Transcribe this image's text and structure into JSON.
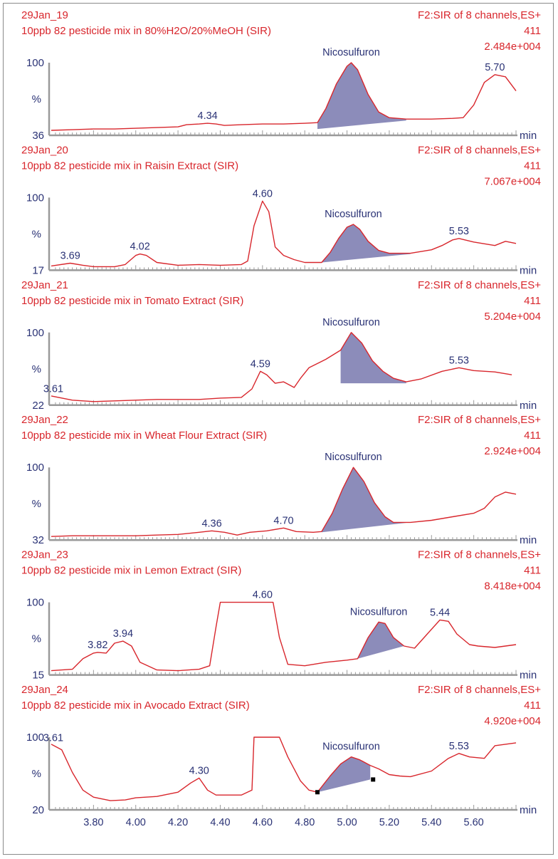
{
  "chart_data": {
    "type": "line",
    "x_axis": {
      "label": "min",
      "range": [
        3.6,
        5.8
      ],
      "ticks": [
        "3.80",
        "4.00",
        "4.20",
        "4.40",
        "4.60",
        "4.80",
        "5.00",
        "5.20",
        "5.40",
        "5.60"
      ]
    },
    "y_axis_label": "%",
    "panels": [
      {
        "sample": "29Jan_19",
        "title": "10ppb 82 pesticide mix in 80%H2O/20%MeOH (SIR)",
        "function": "F2:SIR of 8 channels,ES+",
        "mass": "411",
        "intensity": "2.484e+004",
        "y_top": "100",
        "y_bottom": "36",
        "peak_name": "Nicosulfuron",
        "integration": {
          "start": 4.86,
          "end": 5.28,
          "baseline_start": 6,
          "baseline_end": 18
        },
        "trace": [
          [
            3.6,
            4
          ],
          [
            3.7,
            5
          ],
          [
            3.8,
            6
          ],
          [
            3.9,
            6
          ],
          [
            4.0,
            7
          ],
          [
            4.1,
            8
          ],
          [
            4.2,
            9
          ],
          [
            4.24,
            12
          ],
          [
            4.3,
            13
          ],
          [
            4.34,
            14
          ],
          [
            4.38,
            13
          ],
          [
            4.42,
            11
          ],
          [
            4.5,
            12
          ],
          [
            4.6,
            13
          ],
          [
            4.7,
            13
          ],
          [
            4.8,
            14
          ],
          [
            4.86,
            15
          ],
          [
            4.9,
            35
          ],
          [
            4.95,
            70
          ],
          [
            5.0,
            95
          ],
          [
            5.02,
            100
          ],
          [
            5.05,
            90
          ],
          [
            5.1,
            55
          ],
          [
            5.15,
            30
          ],
          [
            5.2,
            22
          ],
          [
            5.28,
            20
          ],
          [
            5.4,
            20
          ],
          [
            5.5,
            21
          ],
          [
            5.55,
            22
          ],
          [
            5.6,
            40
          ],
          [
            5.65,
            72
          ],
          [
            5.7,
            83
          ],
          [
            5.75,
            80
          ],
          [
            5.8,
            60
          ]
        ],
        "peak_labels": [
          {
            "x": 4.34,
            "text": "4.34"
          },
          {
            "x": 5.7,
            "text": "5.70"
          }
        ]
      },
      {
        "sample": "29Jan_20",
        "title": "10ppb 82 pesticide mix in Raisin Extract (SIR)",
        "function": "F2:SIR of 8 channels,ES+",
        "mass": "411",
        "intensity": "7.067e+004",
        "y_top": "100",
        "y_bottom": "17",
        "peak_name": "Nicosulfuron",
        "integration": {
          "start": 4.88,
          "end": 5.3,
          "baseline_start": 8,
          "baseline_end": 20
        },
        "trace": [
          [
            3.6,
            3
          ],
          [
            3.69,
            7
          ],
          [
            3.75,
            4
          ],
          [
            3.8,
            2
          ],
          [
            3.9,
            2
          ],
          [
            3.95,
            5
          ],
          [
            4.0,
            18
          ],
          [
            4.02,
            20
          ],
          [
            4.05,
            18
          ],
          [
            4.1,
            8
          ],
          [
            4.2,
            4
          ],
          [
            4.3,
            5
          ],
          [
            4.4,
            4
          ],
          [
            4.5,
            5
          ],
          [
            4.53,
            10
          ],
          [
            4.56,
            60
          ],
          [
            4.6,
            95
          ],
          [
            4.63,
            80
          ],
          [
            4.66,
            30
          ],
          [
            4.7,
            18
          ],
          [
            4.75,
            12
          ],
          [
            4.8,
            8
          ],
          [
            4.88,
            8
          ],
          [
            4.92,
            22
          ],
          [
            4.96,
            42
          ],
          [
            5.0,
            58
          ],
          [
            5.03,
            62
          ],
          [
            5.06,
            55
          ],
          [
            5.1,
            38
          ],
          [
            5.15,
            25
          ],
          [
            5.2,
            21
          ],
          [
            5.3,
            21
          ],
          [
            5.4,
            26
          ],
          [
            5.45,
            32
          ],
          [
            5.5,
            40
          ],
          [
            5.53,
            42
          ],
          [
            5.6,
            37
          ],
          [
            5.7,
            32
          ],
          [
            5.75,
            38
          ],
          [
            5.8,
            35
          ]
        ],
        "peak_labels": [
          {
            "x": 3.69,
            "text": "3.69"
          },
          {
            "x": 4.02,
            "text": "4.02"
          },
          {
            "x": 4.6,
            "text": "4.60"
          },
          {
            "x": 5.53,
            "text": "5.53"
          }
        ]
      },
      {
        "sample": "29Jan_21",
        "title": "10ppb 82 pesticide mix in Tomato Extract (SIR)",
        "function": "F2:SIR of 8 channels,ES+",
        "mass": "411",
        "intensity": "5.204e+004",
        "y_top": "100",
        "y_bottom": "22",
        "peak_name": "Nicosulfuron",
        "integration": {
          "start": 4.97,
          "end": 5.28,
          "baseline_start": 28,
          "baseline_end": 28
        },
        "trace": [
          [
            3.6,
            10
          ],
          [
            3.7,
            4
          ],
          [
            3.8,
            2
          ],
          [
            3.9,
            3
          ],
          [
            4.0,
            4
          ],
          [
            4.1,
            5
          ],
          [
            4.2,
            5
          ],
          [
            4.3,
            5
          ],
          [
            4.4,
            7
          ],
          [
            4.5,
            8
          ],
          [
            4.55,
            20
          ],
          [
            4.59,
            45
          ],
          [
            4.62,
            40
          ],
          [
            4.66,
            28
          ],
          [
            4.7,
            30
          ],
          [
            4.75,
            22
          ],
          [
            4.78,
            35
          ],
          [
            4.82,
            50
          ],
          [
            4.9,
            62
          ],
          [
            4.97,
            75
          ],
          [
            5.02,
            100
          ],
          [
            5.07,
            85
          ],
          [
            5.12,
            60
          ],
          [
            5.17,
            45
          ],
          [
            5.22,
            35
          ],
          [
            5.28,
            30
          ],
          [
            5.35,
            34
          ],
          [
            5.45,
            45
          ],
          [
            5.53,
            50
          ],
          [
            5.6,
            46
          ],
          [
            5.7,
            44
          ],
          [
            5.78,
            40
          ]
        ],
        "peak_labels": [
          {
            "x": 3.61,
            "text": "3.61"
          },
          {
            "x": 4.59,
            "text": "4.59"
          },
          {
            "x": 5.53,
            "text": "5.53"
          }
        ]
      },
      {
        "sample": "29Jan_22",
        "title": "10ppb 82 pesticide mix in Wheat Flour Extract (SIR)",
        "function": "F2:SIR of 8 channels,ES+",
        "mass": "411",
        "intensity": "2.924e+004",
        "y_top": "100",
        "y_bottom": "32",
        "peak_name": "Nicosulfuron",
        "integration": {
          "start": 4.88,
          "end": 5.3,
          "baseline_start": 8,
          "baseline_end": 22
        },
        "trace": [
          [
            3.6,
            2
          ],
          [
            3.7,
            3
          ],
          [
            3.8,
            3
          ],
          [
            3.9,
            3
          ],
          [
            4.0,
            3
          ],
          [
            4.1,
            4
          ],
          [
            4.2,
            5
          ],
          [
            4.3,
            8
          ],
          [
            4.36,
            10
          ],
          [
            4.42,
            8
          ],
          [
            4.48,
            4
          ],
          [
            4.54,
            8
          ],
          [
            4.62,
            10
          ],
          [
            4.7,
            14
          ],
          [
            4.76,
            9
          ],
          [
            4.84,
            8
          ],
          [
            4.88,
            9
          ],
          [
            4.93,
            35
          ],
          [
            4.98,
            70
          ],
          [
            5.03,
            100
          ],
          [
            5.08,
            80
          ],
          [
            5.13,
            50
          ],
          [
            5.18,
            30
          ],
          [
            5.22,
            22
          ],
          [
            5.3,
            22
          ],
          [
            5.4,
            25
          ],
          [
            5.5,
            30
          ],
          [
            5.6,
            35
          ],
          [
            5.65,
            42
          ],
          [
            5.7,
            58
          ],
          [
            5.75,
            65
          ],
          [
            5.8,
            62
          ]
        ],
        "peak_labels": [
          {
            "x": 4.36,
            "text": "4.36"
          },
          {
            "x": 4.7,
            "text": "4.70"
          }
        ]
      },
      {
        "sample": "29Jan_23",
        "title": "10ppb 82 pesticide mix in Lemon Extract (SIR)",
        "function": "F2:SIR of 8 channels,ES+",
        "mass": "411",
        "intensity": "8.418e+004",
        "y_top": "100",
        "y_bottom": "15",
        "peak_name": "Nicosulfuron",
        "integration": {
          "start": 5.05,
          "end": 5.27,
          "baseline_start": 20,
          "baseline_end": 38
        },
        "trace": [
          [
            3.6,
            3
          ],
          [
            3.7,
            5
          ],
          [
            3.75,
            20
          ],
          [
            3.8,
            28
          ],
          [
            3.82,
            29
          ],
          [
            3.86,
            28
          ],
          [
            3.9,
            42
          ],
          [
            3.94,
            45
          ],
          [
            3.98,
            38
          ],
          [
            4.02,
            15
          ],
          [
            4.1,
            4
          ],
          [
            4.2,
            3
          ],
          [
            4.3,
            5
          ],
          [
            4.35,
            10
          ],
          [
            4.38,
            65
          ],
          [
            4.4,
            100
          ],
          [
            4.6,
            100
          ],
          [
            4.65,
            100
          ],
          [
            4.68,
            50
          ],
          [
            4.72,
            12
          ],
          [
            4.8,
            10
          ],
          [
            4.9,
            15
          ],
          [
            5.0,
            18
          ],
          [
            5.05,
            20
          ],
          [
            5.1,
            50
          ],
          [
            5.15,
            72
          ],
          [
            5.18,
            70
          ],
          [
            5.22,
            50
          ],
          [
            5.27,
            38
          ],
          [
            5.32,
            35
          ],
          [
            5.38,
            55
          ],
          [
            5.44,
            75
          ],
          [
            5.48,
            73
          ],
          [
            5.52,
            55
          ],
          [
            5.58,
            40
          ],
          [
            5.62,
            38
          ],
          [
            5.7,
            36
          ],
          [
            5.8,
            40
          ]
        ],
        "peak_labels": [
          {
            "x": 3.82,
            "text": "3.82"
          },
          {
            "x": 3.94,
            "text": "3.94"
          },
          {
            "x": 4.6,
            "text": "4.60"
          },
          {
            "x": 5.44,
            "text": "5.44"
          }
        ]
      },
      {
        "sample": "29Jan_24",
        "title": "10ppb 82 pesticide mix in Avocado Extract (SIR)",
        "function": "F2:SIR of 8 channels,ES+",
        "mass": "411",
        "intensity": "4.920e+004",
        "y_top": "100",
        "y_bottom": "20",
        "peak_name": "Nicosulfuron",
        "integration": {
          "start": 4.86,
          "end": 5.11,
          "baseline_start": 22,
          "baseline_end": 40
        },
        "trace": [
          [
            3.6,
            90
          ],
          [
            3.65,
            82
          ],
          [
            3.7,
            50
          ],
          [
            3.75,
            25
          ],
          [
            3.8,
            15
          ],
          [
            3.88,
            10
          ],
          [
            3.95,
            11
          ],
          [
            4.0,
            14
          ],
          [
            4.1,
            16
          ],
          [
            4.2,
            22
          ],
          [
            4.26,
            35
          ],
          [
            4.3,
            42
          ],
          [
            4.34,
            25
          ],
          [
            4.38,
            18
          ],
          [
            4.5,
            18
          ],
          [
            4.55,
            25
          ],
          [
            4.56,
            100
          ],
          [
            4.68,
            100
          ],
          [
            4.72,
            72
          ],
          [
            4.78,
            38
          ],
          [
            4.82,
            25
          ],
          [
            4.86,
            22
          ],
          [
            4.92,
            45
          ],
          [
            4.97,
            62
          ],
          [
            5.02,
            72
          ],
          [
            5.06,
            68
          ],
          [
            5.11,
            60
          ],
          [
            5.15,
            55
          ],
          [
            5.2,
            47
          ],
          [
            5.25,
            45
          ],
          [
            5.3,
            44
          ],
          [
            5.4,
            52
          ],
          [
            5.48,
            70
          ],
          [
            5.53,
            77
          ],
          [
            5.58,
            72
          ],
          [
            5.65,
            70
          ],
          [
            5.7,
            88
          ],
          [
            5.8,
            92
          ]
        ],
        "peak_labels": [
          {
            "x": 3.61,
            "text": "3.61"
          },
          {
            "x": 4.3,
            "text": "4.30"
          },
          {
            "x": 5.53,
            "text": "5.53"
          }
        ]
      }
    ]
  }
}
